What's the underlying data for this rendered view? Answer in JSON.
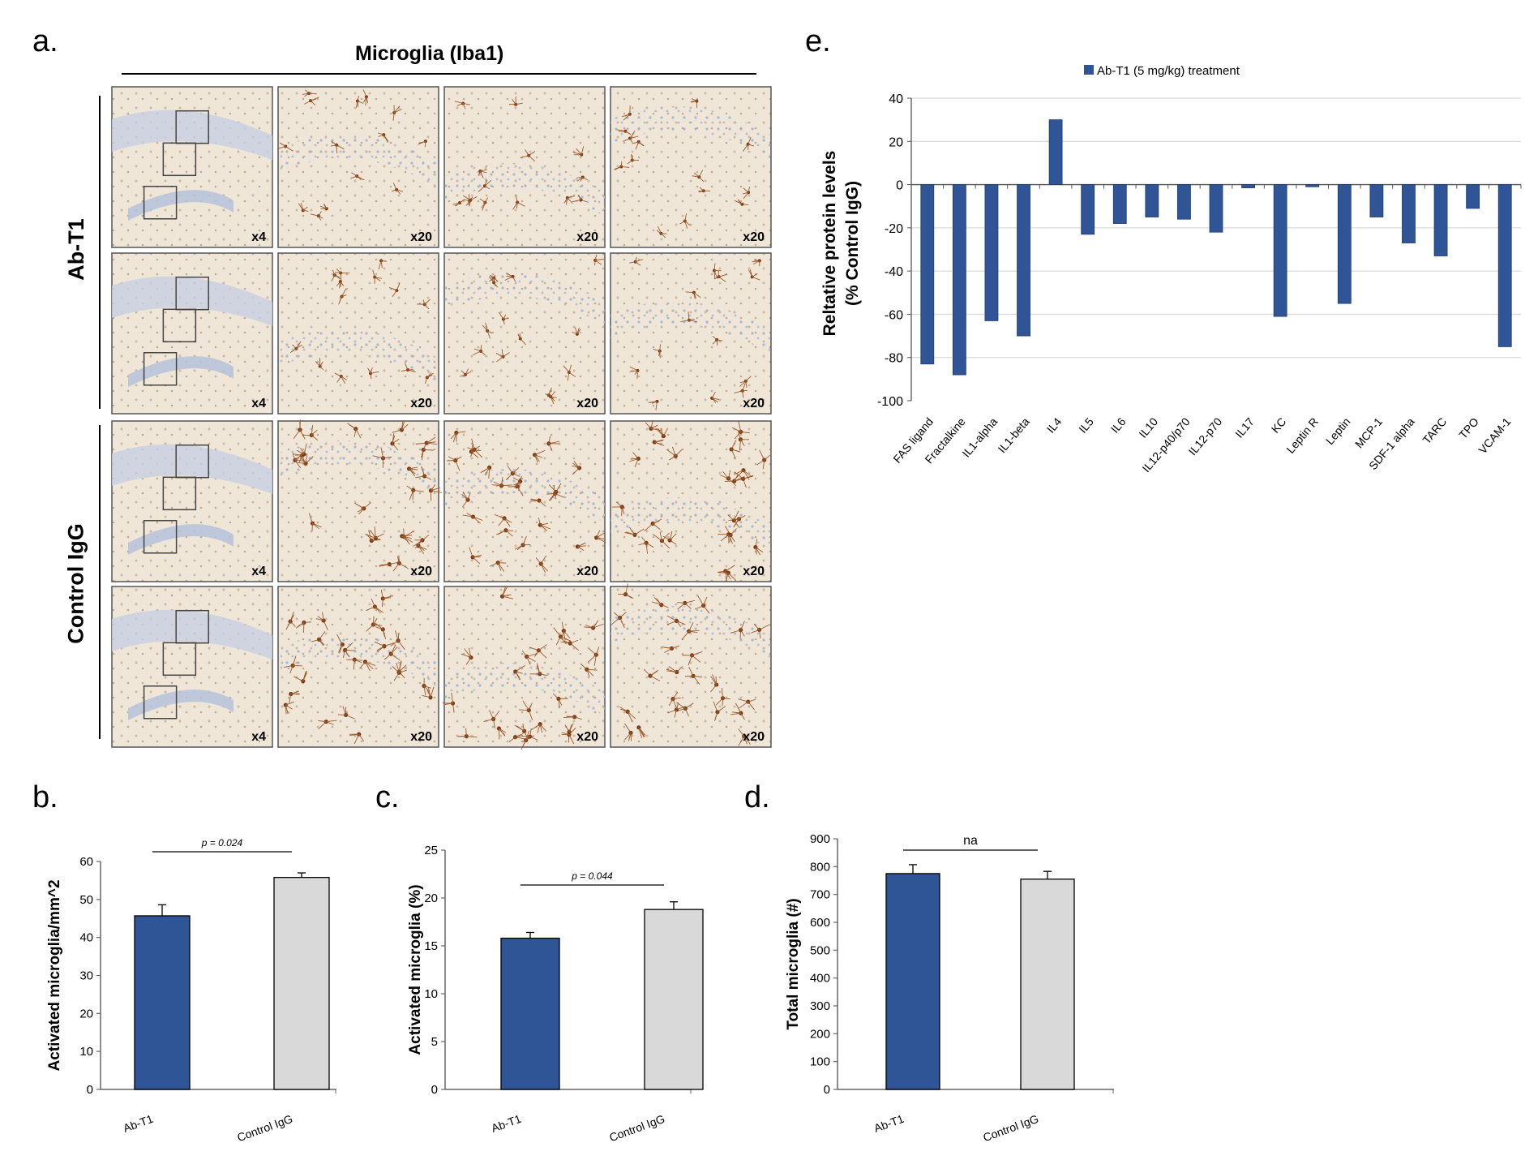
{
  "panels": {
    "a": "a.",
    "b": "b.",
    "c": "c.",
    "d": "d.",
    "e": "e."
  },
  "microscopy": {
    "title": "Microglia (Iba1)",
    "groups": [
      "Ab-T1",
      "Control IgG"
    ],
    "magnifications": [
      "x4",
      "x20",
      "x20",
      "x20"
    ],
    "colors": {
      "tissue": "#d9c9b2",
      "nuclei": "#a9b9d6",
      "cells": "#8b4a1e"
    }
  },
  "chart_data": [
    {
      "id": "b",
      "type": "bar",
      "categories": [
        "Ab-T1",
        "Control IgG"
      ],
      "values": [
        45.7,
        55.8
      ],
      "errors": [
        2.9,
        1.2
      ],
      "colors": [
        "#2f5597",
        "#d9d9d9"
      ],
      "ylabel": "Activated microglia/mm^2",
      "ylim": [
        0,
        60
      ],
      "yticks": [
        0,
        10,
        20,
        30,
        40,
        50,
        60
      ],
      "annotation": "p = 0.024"
    },
    {
      "id": "c",
      "type": "bar",
      "categories": [
        "Ab-T1",
        "Control IgG"
      ],
      "values": [
        15.8,
        18.8
      ],
      "errors": [
        0.6,
        0.8
      ],
      "colors": [
        "#2f5597",
        "#d9d9d9"
      ],
      "ylabel": "Activated microglia (%)",
      "ylim": [
        0,
        25
      ],
      "yticks": [
        0,
        5,
        10,
        15,
        20,
        25
      ],
      "annotation": "p = 0.044"
    },
    {
      "id": "d",
      "type": "bar",
      "categories": [
        "Ab-T1",
        "Control IgG"
      ],
      "values": [
        775,
        755
      ],
      "errors": [
        32,
        28
      ],
      "colors": [
        "#2f5597",
        "#d9d9d9"
      ],
      "ylabel": "Total microglia (#)",
      "ylim": [
        0,
        900
      ],
      "yticks": [
        0,
        100,
        200,
        300,
        400,
        500,
        600,
        700,
        800,
        900
      ],
      "annotation": "na"
    },
    {
      "id": "e",
      "type": "bar",
      "legend": "Ab-T1 (5 mg/kg) treatment",
      "color": "#2f5597",
      "ylabel": "Reltative protein levels",
      "ylabel2": "(% Control IgG)",
      "ylim": [
        -100,
        40
      ],
      "yticks": [
        -100,
        -80,
        -60,
        -40,
        -20,
        0,
        20,
        40
      ],
      "categories": [
        "FAS ligand",
        "Fractalkine",
        "IL1-alpha",
        "IL1-beta",
        "IL4",
        "IL5",
        "IL6",
        "IL10",
        "IL12-p40/p70",
        "IL12-p70",
        "IL17",
        "KC",
        "Leptin R",
        "Leptin",
        "MCP-1",
        "SDF-1 alpha",
        "TARC",
        "TPO",
        "VCAM-1"
      ],
      "values": [
        -83,
        -88,
        -63,
        -70,
        30,
        -23,
        -18,
        -15,
        -16,
        -22,
        -1.5,
        -61,
        -1,
        -55,
        -15,
        -27,
        -33,
        -11,
        -75
      ]
    }
  ]
}
